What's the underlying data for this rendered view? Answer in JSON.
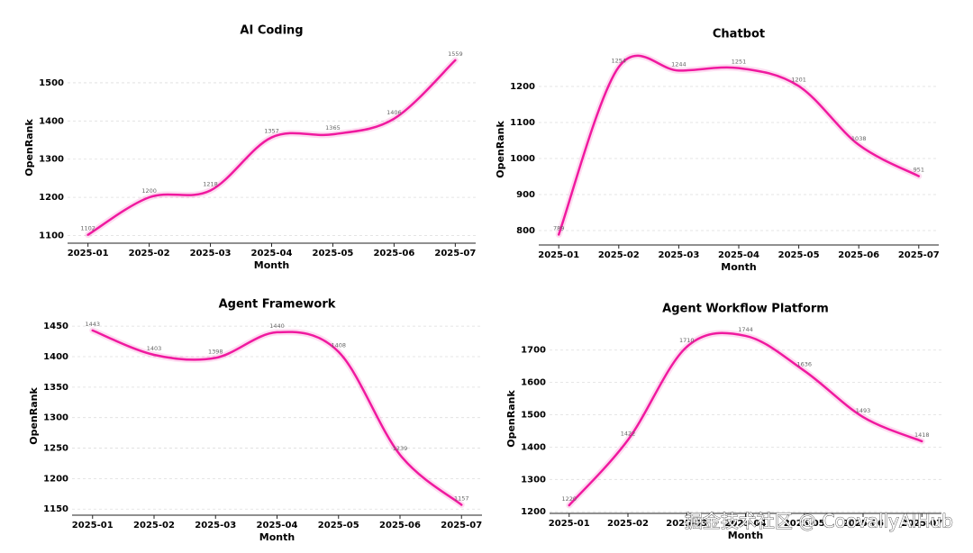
{
  "chart_data": [
    {
      "type": "line",
      "title": "AI Coding",
      "xlabel": "Month",
      "ylabel": "OpenRank",
      "categories": [
        "2025-01",
        "2025-02",
        "2025-03",
        "2025-04",
        "2025-05",
        "2025-06",
        "2025-07"
      ],
      "values": [
        1102,
        1200,
        1218,
        1357,
        1365,
        1406,
        1559
      ],
      "color": "#f0199f",
      "ylim": [
        1080,
        1580
      ],
      "yticks": [
        1100,
        1200,
        1300,
        1400,
        1500
      ],
      "grid": true
    },
    {
      "type": "line",
      "title": "Chatbot",
      "xlabel": "Month",
      "ylabel": "OpenRank",
      "categories": [
        "2025-01",
        "2025-02",
        "2025-03",
        "2025-04",
        "2025-05",
        "2025-06",
        "2025-07"
      ],
      "values": [
        789,
        1254,
        1244,
        1251,
        1201,
        1038,
        951
      ],
      "color": "#f0199f",
      "ylim": [
        760,
        1290
      ],
      "yticks": [
        800,
        900,
        1000,
        1100,
        1200
      ],
      "grid": true
    },
    {
      "type": "line",
      "title": "Agent Framework",
      "xlabel": "Month",
      "ylabel": "OpenRank",
      "categories": [
        "2025-01",
        "2025-02",
        "2025-03",
        "2025-04",
        "2025-05",
        "2025-06",
        "2025-07"
      ],
      "values": [
        1443,
        1403,
        1398,
        1440,
        1408,
        1239,
        1157
      ],
      "color": "#f0199f",
      "ylim": [
        1140,
        1465
      ],
      "yticks": [
        1150,
        1200,
        1250,
        1300,
        1350,
        1400,
        1450
      ],
      "grid": true
    },
    {
      "type": "line",
      "title": "Agent Workflow Platform",
      "xlabel": "Month",
      "ylabel": "OpenRank",
      "categories": [
        "2025-01",
        "2025-02",
        "2025-03",
        "2025-04",
        "2025-05",
        "2025-06",
        "2025-07"
      ],
      "values": [
        1220,
        1422,
        1710,
        1744,
        1636,
        1493,
        1418
      ],
      "color": "#f0199f",
      "ylim": [
        1195,
        1780
      ],
      "yticks": [
        1200,
        1300,
        1400,
        1500,
        1600,
        1700
      ],
      "grid": true
    }
  ],
  "watermark": "掘金技术社区 @ CoovallyAIHub"
}
